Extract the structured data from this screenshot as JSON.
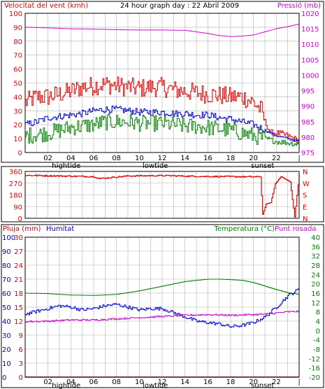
{
  "title": "24 hour graph day : 22 Abril 2009",
  "colors": {
    "red": "#e00000",
    "blue": "#0000cc",
    "green": "#008000",
    "magenta": "#cc00cc",
    "grid": "#b0b0b0",
    "frame": "#000000"
  },
  "chart_data": [
    {
      "type": "line",
      "title": "24 hour graph day : 22 Abril 2009",
      "left_axis_label": "Velocitat del vent (kmh)",
      "right_axis_label": "Pressió (mb)",
      "x_ticks": [
        "02",
        "04",
        "06",
        "08",
        "10",
        "12",
        "14",
        "16",
        "18",
        "20",
        "22"
      ],
      "x_annotations": [
        {
          "label": "hightide",
          "hour": 3.6
        },
        {
          "label": "lowtide",
          "hour": 11.4
        },
        {
          "label": "sunset",
          "hour": 20.8
        }
      ],
      "ylim_left": [
        0,
        100
      ],
      "y_ticks_left": [
        0,
        10,
        20,
        30,
        40,
        50,
        60,
        70,
        80,
        90,
        100
      ],
      "ylim_right": [
        975,
        1020
      ],
      "y_ticks_right": [
        975,
        980,
        985,
        990,
        995,
        1000,
        1005,
        1010,
        1015,
        1020
      ],
      "grid": true,
      "series": [
        {
          "axis": "right",
          "color": "magenta",
          "x": [
            0,
            2,
            4,
            6,
            8,
            10,
            12,
            14,
            16,
            17,
            18,
            19,
            20,
            21,
            22,
            23,
            24
          ],
          "y": [
            1015.5,
            1015.3,
            1015.0,
            1014.9,
            1014.7,
            1014.6,
            1014.6,
            1014.5,
            1013.5,
            1012.8,
            1012.5,
            1012.6,
            1013.0,
            1014.0,
            1015.0,
            1015.7,
            1016.5
          ]
        },
        {
          "axis": "left",
          "color": "red",
          "x": [
            0,
            1,
            2,
            3,
            4,
            5,
            6,
            7,
            8,
            9,
            10,
            11,
            12,
            13,
            14,
            15,
            16,
            17,
            18,
            19,
            20,
            20.7,
            21,
            21.5,
            22,
            23,
            24
          ],
          "y": [
            36,
            40,
            40,
            42,
            44,
            47,
            48,
            49,
            48,
            47,
            46,
            47,
            47,
            45,
            44,
            43,
            42,
            41,
            40,
            40,
            36,
            30,
            22,
            14,
            14,
            12,
            8
          ]
        },
        {
          "axis": "left",
          "color": "blue",
          "x": [
            0,
            1,
            2,
            3,
            4,
            5,
            6,
            7,
            8,
            9,
            10,
            11,
            12,
            13,
            14,
            15,
            16,
            17,
            18,
            19,
            20,
            21,
            22,
            23,
            24
          ],
          "y": [
            20,
            22,
            25,
            26,
            27,
            28,
            30,
            31,
            31,
            30,
            29,
            29,
            29,
            28,
            28,
            27,
            27,
            25,
            24,
            22,
            20,
            16,
            12,
            10,
            8
          ]
        },
        {
          "axis": "left",
          "color": "green",
          "x": [
            0,
            1,
            2,
            3,
            4,
            5,
            6,
            7,
            8,
            9,
            10,
            11,
            12,
            13,
            14,
            15,
            16,
            17,
            18,
            19,
            20,
            21,
            22,
            23,
            24
          ],
          "y": [
            12,
            13,
            14,
            16,
            18,
            19,
            20,
            22,
            22,
            22,
            21,
            21,
            21,
            20,
            19,
            19,
            18,
            17,
            16,
            14,
            12,
            10,
            8,
            7,
            6
          ]
        }
      ]
    },
    {
      "type": "line",
      "title": "",
      "left_axis_label": "",
      "right_axis_label": "",
      "x_ticks": [],
      "ylim_left": [
        0,
        360
      ],
      "y_ticks_left": [
        0,
        90,
        180,
        270,
        360
      ],
      "right_tick_labels": [
        "N",
        "W",
        "S",
        "E",
        "N"
      ],
      "grid": true,
      "series": [
        {
          "axis": "left",
          "color": "red",
          "step": true,
          "x": [
            0,
            3,
            6,
            6.5,
            9,
            12,
            15,
            18,
            20.6,
            20.8,
            21.1,
            21.5,
            21.9,
            22.4,
            23.2,
            23.6,
            24
          ],
          "y": [
            330,
            325,
            320,
            305,
            325,
            328,
            322,
            320,
            318,
            30,
            110,
            120,
            265,
            320,
            280,
            10,
            340
          ]
        }
      ]
    },
    {
      "type": "line",
      "title": "",
      "left_axis_label": "Pluja (mm)",
      "left_axis_label_2": "Humitat",
      "right_axis_label": "Temperatura (°C)",
      "right_axis_label_2": "Punt rosada",
      "x_ticks": [
        "02",
        "04",
        "06",
        "08",
        "10",
        "12",
        "14",
        "16",
        "18",
        "20",
        "22"
      ],
      "x_annotations": [
        {
          "label": "hightide",
          "hour": 3.6
        },
        {
          "label": "lowtide",
          "hour": 11.4
        },
        {
          "label": "sunset",
          "hour": 20.8
        }
      ],
      "y_ticks_pluja": [
        0,
        3,
        6,
        9,
        12,
        15,
        18,
        21,
        24,
        27,
        30
      ],
      "y_ticks_humitat": [
        0,
        10,
        20,
        30,
        40,
        50,
        60,
        70,
        80,
        90,
        100
      ],
      "y_ticks_temp": [
        -20,
        -16,
        -12,
        -8,
        -4,
        0,
        4,
        8,
        12,
        16,
        20,
        24,
        28,
        32,
        36,
        40
      ],
      "ylim_temp": [
        -20,
        40
      ],
      "grid": true,
      "series": [
        {
          "axis": "temp",
          "color": "green",
          "x": [
            0,
            2,
            4,
            6,
            8,
            10,
            12,
            14,
            16,
            17,
            18,
            19,
            20,
            21,
            22,
            23,
            24
          ],
          "y": [
            16,
            15.8,
            15.2,
            15.0,
            15.5,
            17.0,
            19.0,
            21.0,
            22.0,
            22.0,
            21.8,
            21.5,
            20.5,
            19.0,
            17.5,
            16.2,
            15.5
          ]
        },
        {
          "axis": "humitat",
          "color": "blue",
          "x": [
            0,
            1,
            2,
            3,
            4,
            5,
            6,
            7,
            8,
            9,
            10,
            11,
            12,
            13,
            14,
            15,
            16,
            17,
            18,
            19,
            20,
            21,
            22,
            23,
            24
          ],
          "y": [
            45,
            47,
            49,
            51,
            50,
            48,
            49,
            51,
            52,
            50,
            48,
            49,
            49,
            46,
            43,
            40,
            39,
            38,
            36,
            37,
            39,
            43,
            50,
            58,
            63
          ]
        },
        {
          "axis": "temp",
          "color": "magenta",
          "x": [
            0,
            2,
            4,
            6,
            8,
            10,
            12,
            14,
            16,
            18,
            20,
            21,
            22,
            23,
            24
          ],
          "y": [
            3.8,
            4.0,
            4.5,
            4.5,
            5.0,
            5.5,
            6.0,
            6.5,
            6.8,
            6.5,
            6.8,
            7.0,
            7.5,
            8.0,
            8.2
          ]
        },
        {
          "axis": "pluja",
          "color": "red",
          "x": [
            0,
            24
          ],
          "y": [
            0,
            0
          ]
        }
      ]
    }
  ]
}
